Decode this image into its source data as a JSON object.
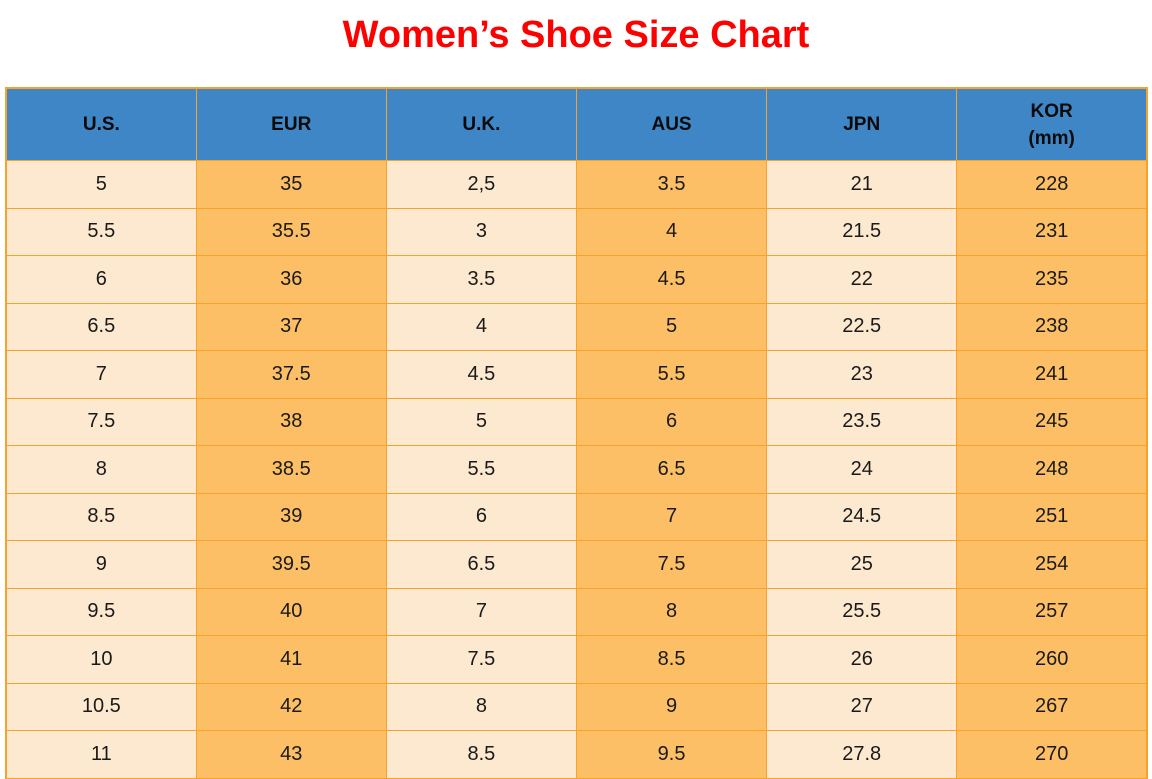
{
  "page": {
    "title": "Women’s Shoe Size Chart"
  },
  "chart_data": {
    "type": "table",
    "title": "Women’s Shoe Size Chart",
    "columns": [
      {
        "key": "us",
        "label": "U.S."
      },
      {
        "key": "eur",
        "label": "EUR"
      },
      {
        "key": "uk",
        "label": "U.K."
      },
      {
        "key": "aus",
        "label": "AUS"
      },
      {
        "key": "jpn",
        "label": "JPN"
      },
      {
        "key": "kor",
        "label": "KOR",
        "sublabel": "(mm)"
      }
    ],
    "rows": [
      [
        "5",
        "35",
        "2,5",
        "3.5",
        "21",
        "228"
      ],
      [
        "5.5",
        "35.5",
        "3",
        "4",
        "21.5",
        "231"
      ],
      [
        "6",
        "36",
        "3.5",
        "4.5",
        "22",
        "235"
      ],
      [
        "6.5",
        "37",
        "4",
        "5",
        "22.5",
        "238"
      ],
      [
        "7",
        "37.5",
        "4.5",
        "5.5",
        "23",
        "241"
      ],
      [
        "7.5",
        "38",
        "5",
        "6",
        "23.5",
        "245"
      ],
      [
        "8",
        "38.5",
        "5.5",
        "6.5",
        "24",
        "248"
      ],
      [
        "8.5",
        "39",
        "6",
        "7",
        "24.5",
        "251"
      ],
      [
        "9",
        "39.5",
        "6.5",
        "7.5",
        "25",
        "254"
      ],
      [
        "9.5",
        "40",
        "7",
        "8",
        "25.5",
        "257"
      ],
      [
        "10",
        "41",
        "7.5",
        "8.5",
        "26",
        "260"
      ],
      [
        "10.5",
        "42",
        "8",
        "9",
        "27",
        "267"
      ],
      [
        "11",
        "43",
        "8.5",
        "9.5",
        "27.8",
        "270"
      ]
    ],
    "layout": {
      "grid": true,
      "column_fill_pattern": [
        "cream",
        "orange",
        "cream",
        "orange",
        "cream",
        "orange"
      ]
    }
  },
  "colors": {
    "title_red": "#FF0000",
    "header_blue": "#3E86C6",
    "cell_cream": "#FCE9CF",
    "cell_orange": "#FCBF66",
    "grid_border": "#F8A22B",
    "text": "#1A1A1A"
  }
}
